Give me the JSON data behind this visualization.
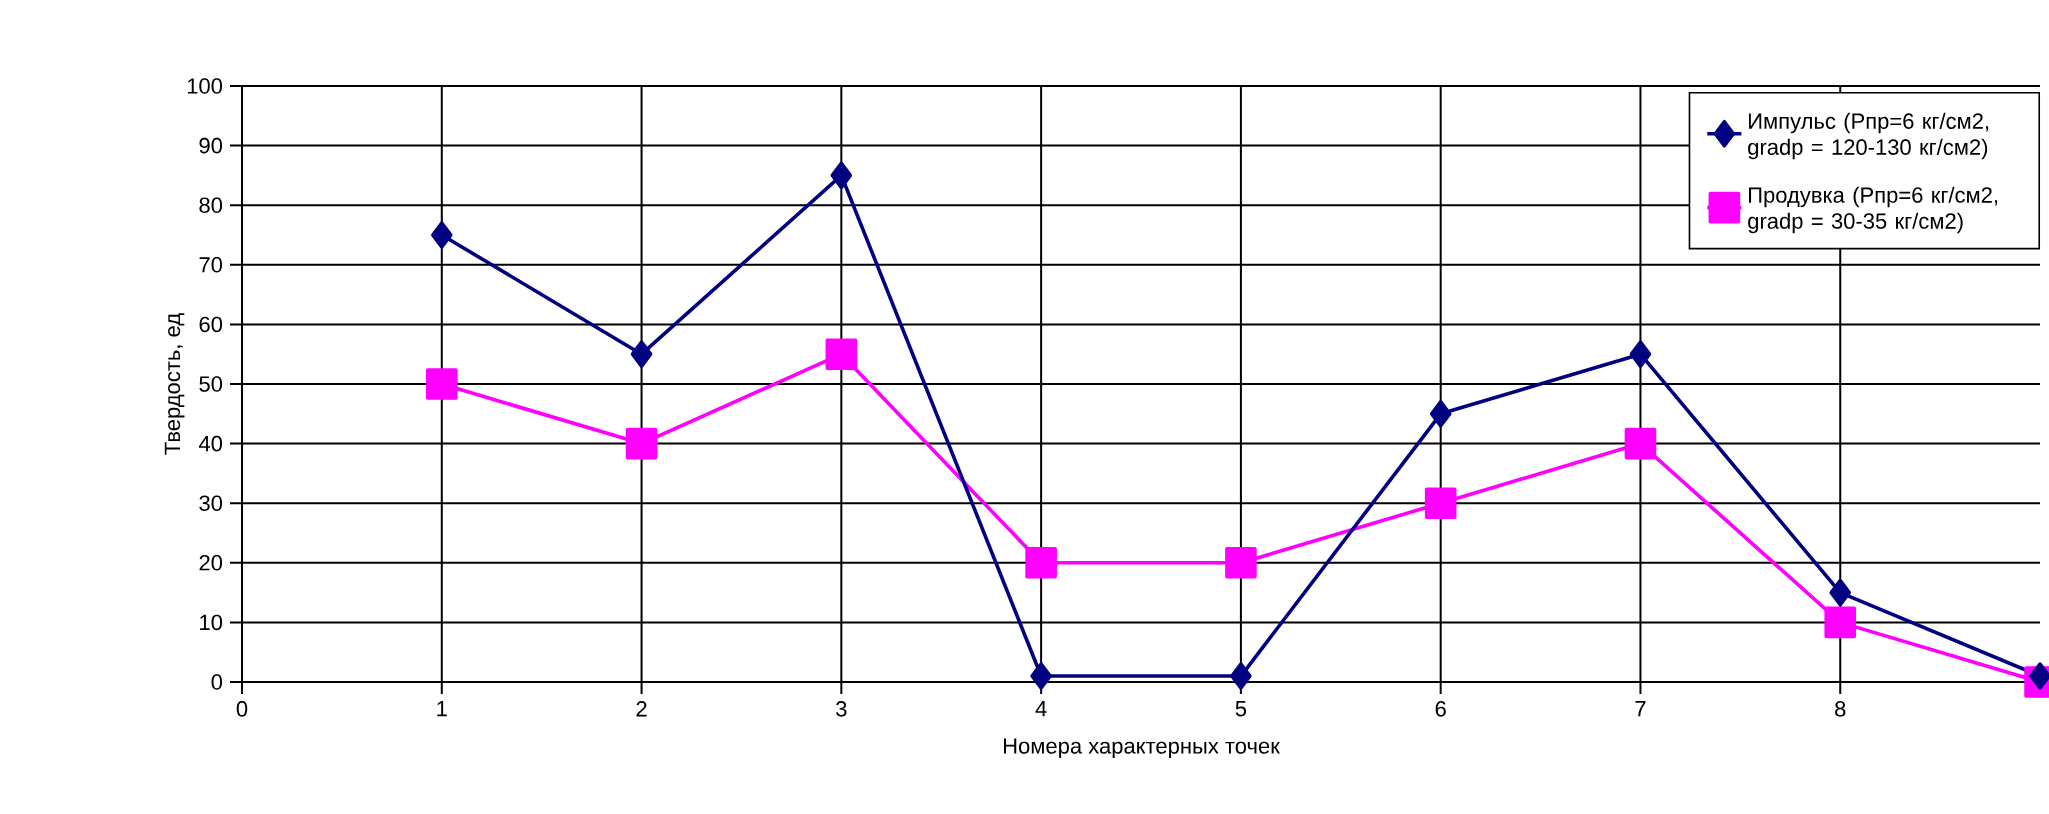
{
  "chart_data": {
    "type": "line",
    "xlabel": "Номера характерных точек",
    "ylabel": "Твердость, ед",
    "x": [
      1,
      2,
      3,
      4,
      5,
      6,
      7,
      8,
      9
    ],
    "series": [
      {
        "name": "Импульс (Рпр=6 кг/см2, gradp = 120-130 кг/см2)",
        "color": "#000080",
        "marker": "diamond",
        "values": [
          75,
          55,
          85,
          1,
          1,
          45,
          55,
          15,
          1
        ]
      },
      {
        "name": "Продувка (Рпр=6 кг/см2, gradp = 30-35 кг/см2)",
        "color": "#ff00ff",
        "marker": "square",
        "values": [
          50,
          40,
          55,
          20,
          20,
          30,
          40,
          10,
          0
        ]
      }
    ],
    "xlim": [
      0,
      9
    ],
    "xticks": [
      0,
      1,
      2,
      3,
      4,
      5,
      6,
      7,
      8
    ],
    "ylim": [
      0,
      100
    ],
    "yticks": [
      0,
      10,
      20,
      30,
      40,
      50,
      60,
      70,
      80,
      90,
      100
    ],
    "grid": true,
    "legend": "top right"
  }
}
